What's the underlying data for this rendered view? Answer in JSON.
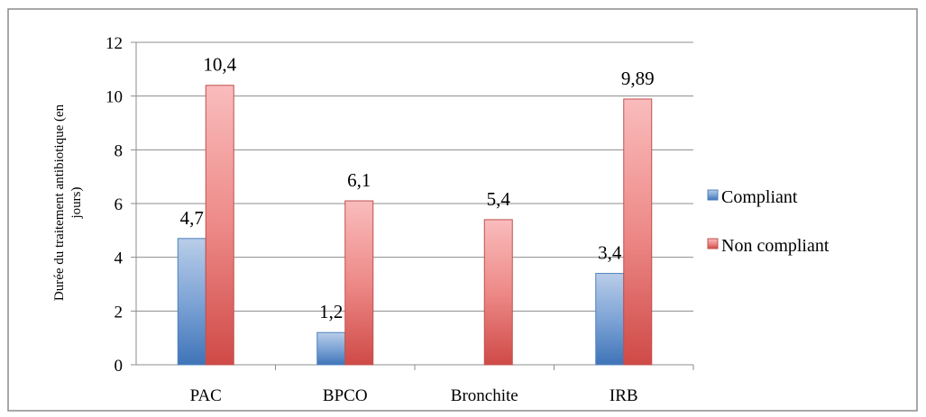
{
  "chart_data": {
    "type": "bar",
    "categories": [
      "PAC",
      "BPCO",
      "Bronchite",
      "IRB"
    ],
    "series": [
      {
        "name": "Compliant",
        "values": [
          4.7,
          1.2,
          null,
          3.4
        ],
        "labels": [
          "4,7",
          "1,2",
          "",
          "3,4"
        ],
        "color": "#4f81bd"
      },
      {
        "name": "Non compliant",
        "values": [
          10.4,
          6.1,
          5.4,
          9.89
        ],
        "labels": [
          "10,4",
          "6,1",
          "5,4",
          "9,89"
        ],
        "color": "#c0504d"
      }
    ],
    "ylabel_line1": "Durée du traitement antibiotique (en",
    "ylabel_line2": "jours)",
    "ylim": [
      0,
      12
    ],
    "yticks": [
      0,
      2,
      4,
      6,
      8,
      10,
      12
    ],
    "grid": true,
    "legend_position": "right"
  }
}
